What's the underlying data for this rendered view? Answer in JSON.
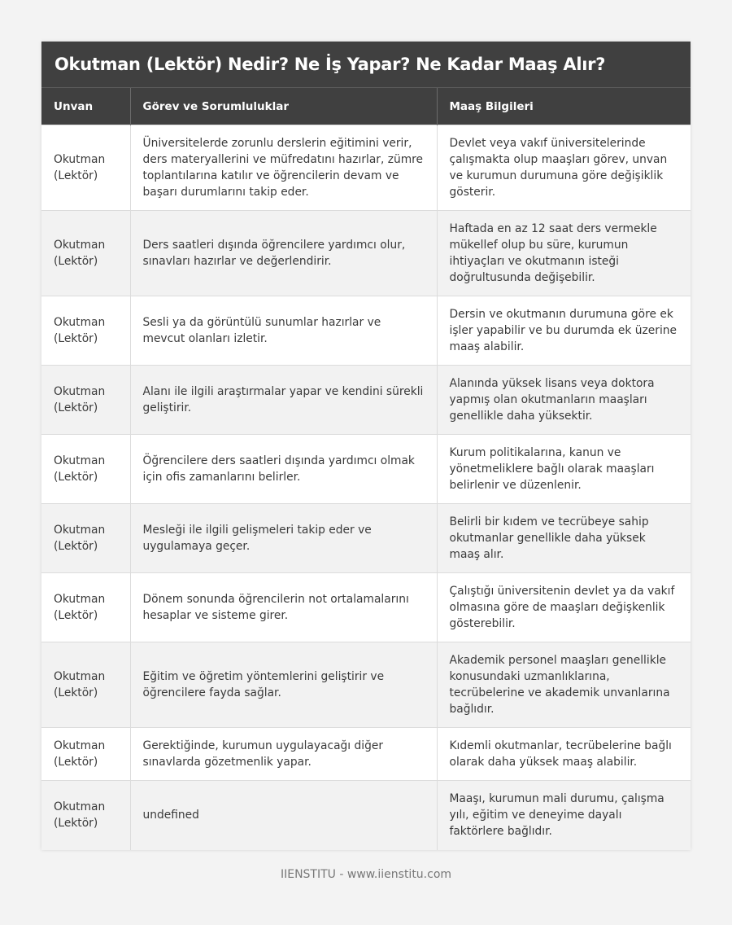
{
  "title": "Okutman (Lektör) Nedir? Ne İş Yapar? Ne Kadar Maaş Alır?",
  "columns": [
    "Unvan",
    "Görev ve Sorumluluklar",
    "Maaş Bilgileri"
  ],
  "rows": [
    [
      "Okutman (Lektör)",
      "Üniversitelerde zorunlu derslerin eğitimini verir, ders materyallerini ve müfredatını hazırlar, zümre toplantılarına katılır ve öğrencilerin devam ve başarı durumlarını takip eder.",
      "Devlet veya vakıf üniversitelerinde çalışmakta olup maaşları görev, unvan ve kurumun durumuna göre değişiklik gösterir."
    ],
    [
      "Okutman (Lektör)",
      "Ders saatleri dışında öğrencilere yardımcı olur, sınavları hazırlar ve değerlendirir.",
      "Haftada en az 12 saat ders vermekle mükellef olup bu süre, kurumun ihtiyaçları ve okutmanın isteği doğrultusunda değişebilir."
    ],
    [
      "Okutman (Lektör)",
      "Sesli ya da görüntülü sunumlar hazırlar ve mevcut olanları izletir.",
      "Dersin ve okutmanın durumuna göre ek işler yapabilir ve bu durumda ek üzerine maaş alabilir."
    ],
    [
      "Okutman (Lektör)",
      "Alanı ile ilgili araştırmalar yapar ve kendini sürekli geliştirir.",
      "Alanında yüksek lisans veya doktora yapmış olan okutmanların maaşları genellikle daha yüksektir."
    ],
    [
      "Okutman (Lektör)",
      "Öğrencilere ders saatleri dışında yardımcı olmak için ofis zamanlarını belirler.",
      "Kurum politikalarına, kanun ve yönetmeliklere bağlı olarak maaşları belirlenir ve düzenlenir."
    ],
    [
      "Okutman (Lektör)",
      "Mesleği ile ilgili gelişmeleri takip eder ve uygulamaya geçer.",
      "Belirli bir kıdem ve tecrübeye sahip okutmanlar genellikle daha yüksek maaş alır."
    ],
    [
      "Okutman (Lektör)",
      "Dönem sonunda öğrencilerin not ortalamalarını hesaplar ve sisteme girer.",
      "Çalıştığı üniversitenin devlet ya da vakıf olmasına göre de maaşları değişkenlik gösterebilir."
    ],
    [
      "Okutman (Lektör)",
      "Eğitim ve öğretim yöntemlerini geliştirir ve öğrencilere fayda sağlar.",
      "Akademik personel maaşları genellikle konusundaki uzmanlıklarına, tecrübelerine ve akademik unvanlarına bağlıdır."
    ],
    [
      "Okutman (Lektör)",
      "Gerektiğinde, kurumun uygulayacağı diğer sınavlarda gözetmenlik yapar.",
      "Kıdemli okutmanlar, tecrübelerine bağlı olarak daha yüksek maaş alabilir."
    ],
    [
      "Okutman (Lektör)",
      "undefined",
      "Maaşı, kurumun mali durumu, çalışma yılı, eğitim ve deneyime dayalı faktörlere bağlıdır."
    ]
  ],
  "footer": "IIENSTITU - www.iienstitu.com"
}
